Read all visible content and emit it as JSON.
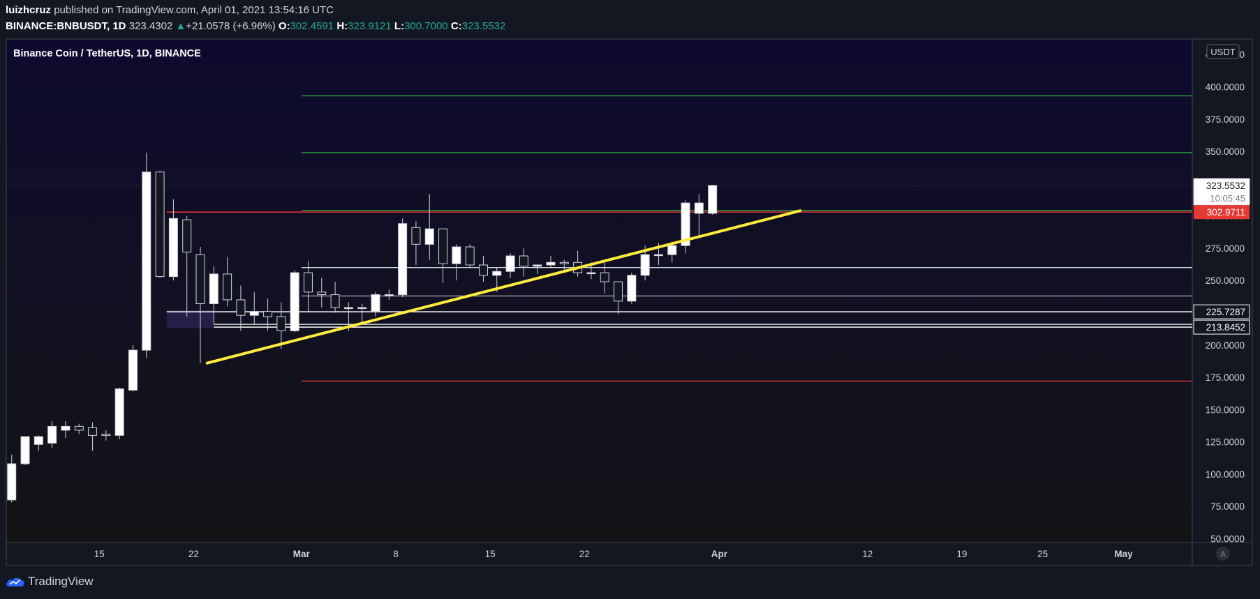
{
  "header": {
    "author": "luizhcruz",
    "published_text": "published on TradingView.com, April 01, 2021 13:54:16 UTC",
    "symbol": "BINANCE:BNBUSDT, 1D",
    "last": "323.4302",
    "change": "+21.0578 (+6.96%)",
    "o_label": "O:",
    "o_val": "302.4591",
    "h_label": "H:",
    "h_val": "323.9121",
    "l_label": "L:",
    "l_val": "300.7000",
    "c_label": "C:",
    "c_val": "323.5532"
  },
  "footer": {
    "brand": "TradingView"
  },
  "chart_data": {
    "type": "candlestick",
    "title": "Binance Coin / TetherUS, 1D, BINANCE",
    "currency": "USDT",
    "y_ticks": [
      50,
      75,
      100,
      125,
      150,
      175,
      200,
      225,
      250,
      275,
      300,
      325,
      350,
      375,
      400,
      425
    ],
    "y_tick_labels": [
      "50.0000",
      "75.0000",
      "100.0000",
      "125.0000",
      "150.0000",
      "175.0000",
      "200.0000",
      "225.0000",
      "250.0000",
      "275.0000",
      "300.0000",
      "325.0000",
      "350.0000",
      "375.0000",
      "400.0000",
      "425.0000"
    ],
    "ylim": [
      47,
      437
    ],
    "x_ticks": [
      {
        "label": "15",
        "day": 45,
        "bold": false
      },
      {
        "label": "22",
        "day": 52,
        "bold": false
      },
      {
        "label": "Mar",
        "day": 60,
        "bold": true
      },
      {
        "label": "8",
        "day": 67,
        "bold": false
      },
      {
        "label": "15",
        "day": 74,
        "bold": false
      },
      {
        "label": "22",
        "day": 81,
        "bold": false
      },
      {
        "label": "Apr",
        "day": 91,
        "bold": true
      },
      {
        "label": "12",
        "day": 102,
        "bold": false
      },
      {
        "label": "19",
        "day": 109,
        "bold": false
      },
      {
        "label": "25",
        "day": 115,
        "bold": false
      },
      {
        "label": "May",
        "day": 121,
        "bold": true
      }
    ],
    "xlim": [
      38.1,
      126.1
    ],
    "candles": [
      {
        "d": 38.5,
        "o": 80,
        "h": 115,
        "l": 78,
        "c": 108
      },
      {
        "d": 39.5,
        "o": 108,
        "h": 128,
        "l": 107,
        "c": 129
      },
      {
        "d": 40.5,
        "o": 123,
        "h": 130,
        "l": 118,
        "c": 129
      },
      {
        "d": 41.5,
        "o": 124,
        "h": 141,
        "l": 120,
        "c": 137
      },
      {
        "d": 42.5,
        "o": 134,
        "h": 141,
        "l": 128,
        "c": 137
      },
      {
        "d": 43.5,
        "o": 137,
        "h": 139,
        "l": 131,
        "c": 134
      },
      {
        "d": 44.5,
        "o": 136,
        "h": 140,
        "l": 118,
        "c": 130
      },
      {
        "d": 45.5,
        "o": 131,
        "h": 134,
        "l": 126,
        "c": 130
      },
      {
        "d": 46.5,
        "o": 130,
        "h": 167,
        "l": 127,
        "c": 166
      },
      {
        "d": 47.5,
        "o": 165,
        "h": 200,
        "l": 164,
        "c": 196
      },
      {
        "d": 48.5,
        "o": 196,
        "h": 349,
        "l": 190,
        "c": 334
      },
      {
        "d": 49.5,
        "o": 334,
        "h": 335,
        "l": 252,
        "c": 253
      },
      {
        "d": 50.5,
        "o": 253,
        "h": 313,
        "l": 250,
        "c": 298
      },
      {
        "d": 51.5,
        "o": 297,
        "h": 300,
        "l": 222,
        "c": 272
      },
      {
        "d": 52.5,
        "o": 270,
        "h": 276,
        "l": 186,
        "c": 232
      },
      {
        "d": 53.5,
        "o": 232,
        "h": 261,
        "l": 216,
        "c": 255
      },
      {
        "d": 54.5,
        "o": 255,
        "h": 268,
        "l": 230,
        "c": 235
      },
      {
        "d": 55.5,
        "o": 235,
        "h": 246,
        "l": 211,
        "c": 223
      },
      {
        "d": 56.5,
        "o": 223,
        "h": 241,
        "l": 216,
        "c": 226
      },
      {
        "d": 57.5,
        "o": 226,
        "h": 236,
        "l": 211,
        "c": 222
      },
      {
        "d": 58.5,
        "o": 222,
        "h": 233,
        "l": 197,
        "c": 211
      },
      {
        "d": 59.5,
        "o": 211,
        "h": 258,
        "l": 210,
        "c": 256
      },
      {
        "d": 60.5,
        "o": 256,
        "h": 265,
        "l": 226,
        "c": 241
      },
      {
        "d": 61.5,
        "o": 241,
        "h": 252,
        "l": 229,
        "c": 239
      },
      {
        "d": 62.5,
        "o": 239,
        "h": 249,
        "l": 225,
        "c": 229
      },
      {
        "d": 63.5,
        "o": 229,
        "h": 233,
        "l": 211,
        "c": 229
      },
      {
        "d": 64.5,
        "o": 229,
        "h": 232,
        "l": 217,
        "c": 229
      },
      {
        "d": 65.5,
        "o": 226,
        "h": 241,
        "l": 222,
        "c": 239
      },
      {
        "d": 66.5,
        "o": 239,
        "h": 243,
        "l": 235,
        "c": 239
      },
      {
        "d": 67.5,
        "o": 239,
        "h": 298,
        "l": 237,
        "c": 294
      },
      {
        "d": 68.5,
        "o": 291,
        "h": 296,
        "l": 262,
        "c": 278
      },
      {
        "d": 69.5,
        "o": 278,
        "h": 317,
        "l": 266,
        "c": 290
      },
      {
        "d": 70.5,
        "o": 290,
        "h": 289,
        "l": 248,
        "c": 263
      },
      {
        "d": 71.5,
        "o": 263,
        "h": 278,
        "l": 250,
        "c": 276
      },
      {
        "d": 72.5,
        "o": 276,
        "h": 278,
        "l": 260,
        "c": 262
      },
      {
        "d": 73.5,
        "o": 262,
        "h": 269,
        "l": 249,
        "c": 254
      },
      {
        "d": 74.5,
        "o": 254,
        "h": 260,
        "l": 241,
        "c": 257
      },
      {
        "d": 75.5,
        "o": 257,
        "h": 271,
        "l": 252,
        "c": 269
      },
      {
        "d": 76.5,
        "o": 269,
        "h": 275,
        "l": 253,
        "c": 261
      },
      {
        "d": 77.5,
        "o": 261,
        "h": 262,
        "l": 255,
        "c": 262
      },
      {
        "d": 78.5,
        "o": 262,
        "h": 269,
        "l": 260,
        "c": 264
      },
      {
        "d": 79.5,
        "o": 264,
        "h": 266,
        "l": 257,
        "c": 263
      },
      {
        "d": 80.5,
        "o": 264,
        "h": 273,
        "l": 253,
        "c": 256
      },
      {
        "d": 81.5,
        "o": 256,
        "h": 264,
        "l": 251,
        "c": 256
      },
      {
        "d": 82.5,
        "o": 256,
        "h": 266,
        "l": 240,
        "c": 249
      },
      {
        "d": 83.5,
        "o": 249,
        "h": 249,
        "l": 224,
        "c": 234
      },
      {
        "d": 84.5,
        "o": 234,
        "h": 256,
        "l": 232,
        "c": 254
      },
      {
        "d": 85.5,
        "o": 254,
        "h": 277,
        "l": 250,
        "c": 270
      },
      {
        "d": 86.5,
        "o": 270,
        "h": 279,
        "l": 262,
        "c": 270
      },
      {
        "d": 87.5,
        "o": 270,
        "h": 280,
        "l": 264,
        "c": 277
      },
      {
        "d": 88.5,
        "o": 277,
        "h": 312,
        "l": 271,
        "c": 310
      },
      {
        "d": 89.5,
        "o": 302,
        "h": 317,
        "l": 285,
        "c": 310
      },
      {
        "d": 90.5,
        "o": 302,
        "h": 324,
        "l": 301,
        "c": 323.55
      }
    ],
    "horizontal_levels": [
      {
        "y": 393,
        "color": "#2e9e3e",
        "start_day": 60,
        "style": "solid"
      },
      {
        "y": 349,
        "color": "#2e9e3e",
        "start_day": 60,
        "style": "solid"
      },
      {
        "y": 304.3,
        "color": "#2e9e3e",
        "start_day": 60,
        "style": "solid"
      },
      {
        "y": 302.97,
        "color": "#e53935",
        "start_day": 50,
        "style": "solid"
      },
      {
        "y": 172,
        "color": "#e53935",
        "start_day": 60,
        "style": "solid"
      },
      {
        "y": 260,
        "color": "#cfd8dc",
        "start_day": 60,
        "style": "solid"
      },
      {
        "y": 238,
        "color": "#9e9e9e",
        "start_day": 60,
        "style": "solid"
      },
      {
        "y": 225.73,
        "color": "#ffffff",
        "start_day": 50,
        "style": "solid"
      },
      {
        "y": 216,
        "color": "#cfd8dc",
        "start_day": 53.5,
        "style": "solid"
      },
      {
        "y": 213.85,
        "color": "#ffffff",
        "start_day": 53.5,
        "style": "solid"
      },
      {
        "y": 323.55,
        "color": "#5d6278",
        "start_day": 38,
        "style": "dotted"
      }
    ],
    "trendline": {
      "d1": 53,
      "y1": 186,
      "d2": 97,
      "y2": 304,
      "color": "#ffeb3b"
    },
    "zone": {
      "d1": 50,
      "d2": 53.5,
      "y1": 213,
      "y2": 227
    },
    "price_labels": [
      {
        "text": "323.5532",
        "sub": "10:05:45",
        "y": 323.55,
        "style": "current"
      },
      {
        "text": "302.9711",
        "y": 302.97,
        "style": "red"
      },
      {
        "text": "225.7287",
        "y": 225.73,
        "style": "outline"
      },
      {
        "text": "213.8452",
        "y": 213.85,
        "style": "outline"
      }
    ],
    "scale_button": "A"
  }
}
